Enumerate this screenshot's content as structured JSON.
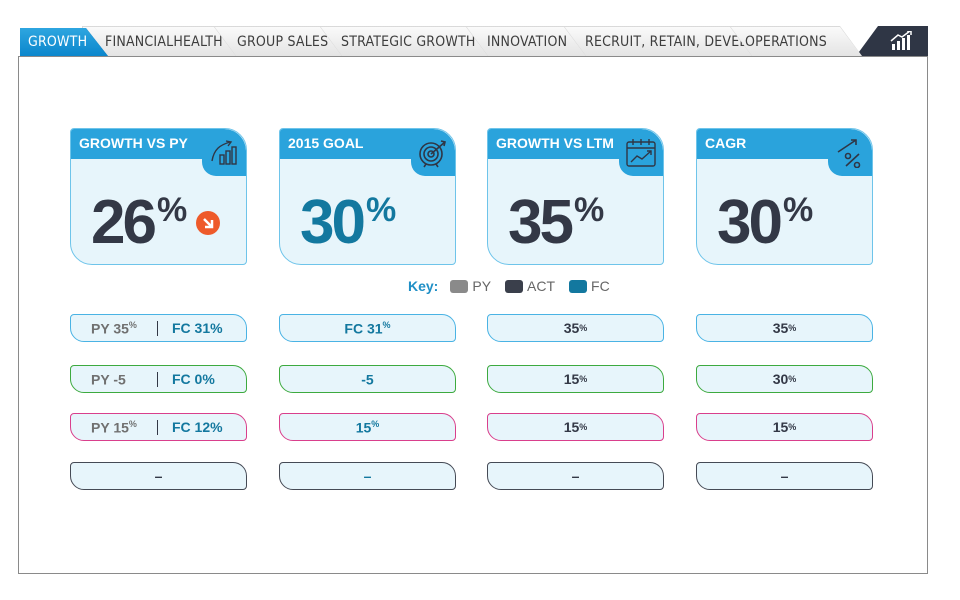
{
  "tabs": [
    {
      "label": "GROWTH",
      "active": true
    },
    {
      "label": "FINANCIALHEALTH"
    },
    {
      "label": "GROUP SALES"
    },
    {
      "label": "STRATEGIC GROWTH"
    },
    {
      "label": "INNOVATION"
    },
    {
      "label": "RECRUIT, RETAIN, DEVELOP"
    },
    {
      "label": "OPERATIONS"
    }
  ],
  "chart_tab_icon": "bar-chart-growth-icon",
  "cards": [
    {
      "title": "GROWTH VS PY",
      "value": "26",
      "unit": "%",
      "icon": "growth-arrow-bars-icon",
      "trend": "down-arrow-icon",
      "color": "#333846"
    },
    {
      "title": "2015 GOAL",
      "value": "30",
      "unit": "%",
      "icon": "target-icon",
      "color": "#13789f"
    },
    {
      "title": "GROWTH VS LTM",
      "value": "35",
      "unit": "%",
      "icon": "calendar-chart-icon",
      "color": "#333846"
    },
    {
      "title": "CAGR",
      "value": "30",
      "unit": "%",
      "icon": "percent-growth-icon",
      "color": "#333846"
    }
  ],
  "key": {
    "title": "Key:",
    "items": [
      {
        "label": "PY",
        "color": "#8a8a8a"
      },
      {
        "label": "ACT",
        "color": "#3a3f4b"
      },
      {
        "label": "FC",
        "color": "#13789f"
      }
    ]
  },
  "rows": [
    {
      "border": "#4ab3e4",
      "col1": {
        "py": "PY 35",
        "py_unit": "%",
        "fc": "FC 31%"
      },
      "col2": {
        "text": "FC 31",
        "unit": "%"
      },
      "col3": {
        "text": "35",
        "unit": "%"
      },
      "col4": {
        "text": "35",
        "unit": "%"
      }
    },
    {
      "border": "#3daa3f",
      "col1": {
        "py": "PY -5",
        "py_unit": "",
        "fc": "FC 0%"
      },
      "col2": {
        "text": "-5",
        "unit": ""
      },
      "col3": {
        "text": "15",
        "unit": "%"
      },
      "col4": {
        "text": "30",
        "unit": "%"
      }
    },
    {
      "border": "#d93f8c",
      "col1": {
        "py": "PY 15",
        "py_unit": "%",
        "fc": "FC 12%"
      },
      "col2": {
        "text": "15",
        "unit": "%"
      },
      "col3": {
        "text": "15",
        "unit": "%"
      },
      "col4": {
        "text": "15",
        "unit": "%"
      }
    },
    {
      "border": "#454a55",
      "col1": {
        "text": "–"
      },
      "col2": {
        "text": "–"
      },
      "col3": {
        "text": "–"
      },
      "col4": {
        "text": "–"
      }
    }
  ]
}
